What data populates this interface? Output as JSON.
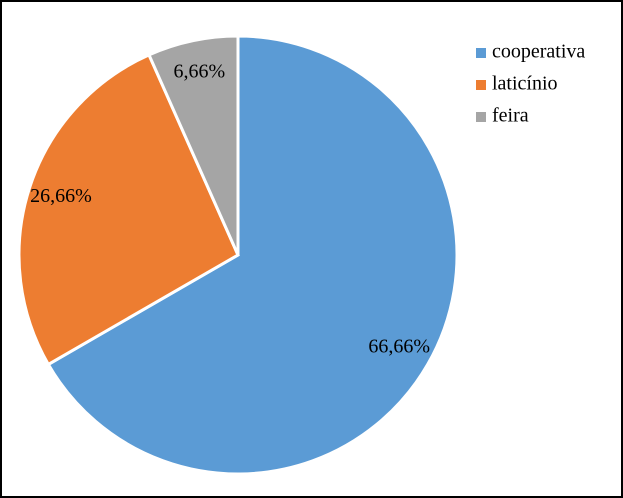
{
  "chart_data": {
    "type": "pie",
    "categories": [
      "cooperativa",
      "laticínio",
      "feira"
    ],
    "values": [
      66.66,
      26.66,
      6.66
    ],
    "value_labels": [
      "66,66%",
      "26,66%",
      "6,66%"
    ],
    "colors": [
      "#5b9bd5",
      "#ed7d31",
      "#a5a5a5"
    ],
    "legend": "right"
  }
}
